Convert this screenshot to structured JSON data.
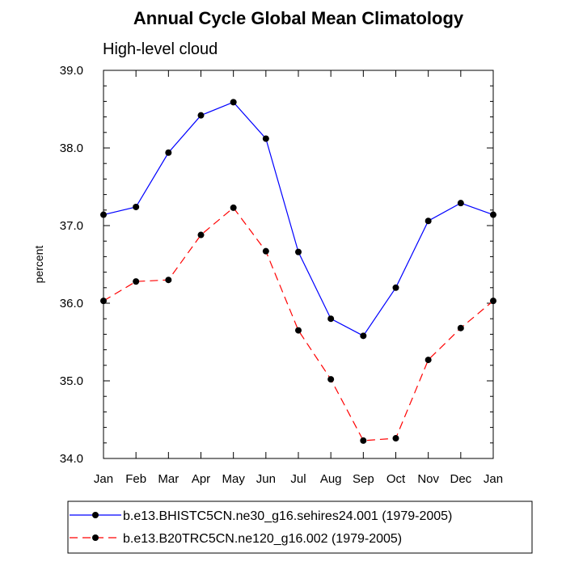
{
  "chart_data": {
    "type": "line",
    "title": "Annual Cycle Global Mean Climatology",
    "subtitle": "High-level cloud",
    "xlabel": "",
    "ylabel": "percent",
    "categories": [
      "Jan",
      "Feb",
      "Mar",
      "Apr",
      "May",
      "Jun",
      "Jul",
      "Aug",
      "Sep",
      "Oct",
      "Nov",
      "Dec",
      "Jan"
    ],
    "ylim": [
      34.0,
      39.0
    ],
    "yticks": [
      "34.0",
      "35.0",
      "36.0",
      "37.0",
      "38.0",
      "39.0"
    ],
    "grid": false,
    "legend_position": "bottom",
    "series": [
      {
        "name": "b.e13.BHISTC5CN.ne30_g16.sehires24.001 (1979-2005)",
        "color": "#0000ff",
        "dash": "solid",
        "values": [
          37.14,
          37.24,
          37.94,
          38.42,
          38.59,
          38.12,
          36.66,
          35.8,
          35.58,
          36.2,
          37.06,
          37.29,
          37.14
        ]
      },
      {
        "name": "b.e13.B20TRC5CN.ne120_g16.002 (1979-2005)",
        "color": "#ff0000",
        "dash": "dashed",
        "values": [
          36.03,
          36.28,
          36.3,
          36.88,
          37.23,
          36.67,
          35.65,
          35.02,
          34.23,
          34.26,
          35.27,
          35.68,
          36.03
        ]
      }
    ]
  }
}
